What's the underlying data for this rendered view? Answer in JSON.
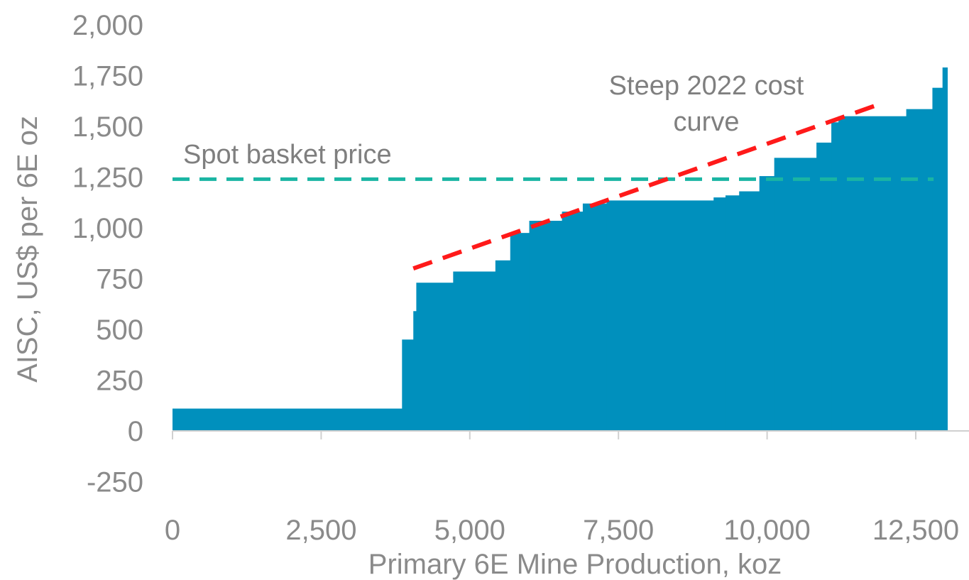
{
  "chart_data": {
    "type": "area",
    "step": true,
    "xlabel": "Primary 6E Mine Production, koz",
    "ylabel": "AISC, US$ per 6E oz",
    "xlim": [
      0,
      13300
    ],
    "ylim": [
      -250,
      2000
    ],
    "x_ticks": [
      0,
      2500,
      5000,
      7500,
      10000,
      12500
    ],
    "x_tick_labels": [
      "0",
      "2,500",
      "5,000",
      "7,500",
      "10,000",
      "12,500"
    ],
    "y_ticks": [
      -250,
      0,
      250,
      500,
      750,
      1000,
      1250,
      1500,
      1750,
      2000
    ],
    "y_tick_labels": [
      "-250",
      "0",
      "250",
      "500",
      "750",
      "1,000",
      "1,250",
      "1,500",
      "1,750",
      "2,000"
    ],
    "grid": false,
    "legend": "none",
    "colors": {
      "bars": "#0090bd",
      "spot_line": "#1ab5a3",
      "trend_line": "#ff1a1a",
      "axis": "#d0d0d0",
      "text": "#8a8a8a"
    },
    "segments": [
      {
        "x0": 0,
        "x1": 3860,
        "y": 110
      },
      {
        "x0": 3860,
        "x1": 4050,
        "y": 450
      },
      {
        "x0": 4050,
        "x1": 4100,
        "y": 590
      },
      {
        "x0": 4100,
        "x1": 4720,
        "y": 730
      },
      {
        "x0": 4720,
        "x1": 5430,
        "y": 785
      },
      {
        "x0": 5430,
        "x1": 5680,
        "y": 840
      },
      {
        "x0": 5680,
        "x1": 6000,
        "y": 975
      },
      {
        "x0": 6000,
        "x1": 6550,
        "y": 1035
      },
      {
        "x0": 6550,
        "x1": 6900,
        "y": 1080
      },
      {
        "x0": 6900,
        "x1": 7300,
        "y": 1120
      },
      {
        "x0": 7300,
        "x1": 9100,
        "y": 1135
      },
      {
        "x0": 9100,
        "x1": 9300,
        "y": 1150
      },
      {
        "x0": 9300,
        "x1": 9530,
        "y": 1160
      },
      {
        "x0": 9530,
        "x1": 9870,
        "y": 1180
      },
      {
        "x0": 9870,
        "x1": 10120,
        "y": 1255
      },
      {
        "x0": 10120,
        "x1": 10830,
        "y": 1345
      },
      {
        "x0": 10830,
        "x1": 11080,
        "y": 1420
      },
      {
        "x0": 11080,
        "x1": 11200,
        "y": 1520
      },
      {
        "x0": 11200,
        "x1": 12340,
        "y": 1550
      },
      {
        "x0": 12340,
        "x1": 12780,
        "y": 1585
      },
      {
        "x0": 12780,
        "x1": 12950,
        "y": 1690
      },
      {
        "x0": 12950,
        "x1": 13030,
        "y": 1790
      }
    ],
    "spot_price": {
      "label": "Spot basket price",
      "y": 1240,
      "x_start": 0,
      "x_end": 12800
    },
    "trend": {
      "label_line1": "Steep 2022 cost",
      "label_line2": "curve",
      "x0": 4050,
      "y0": 800,
      "x1": 11800,
      "y1": 1600
    }
  }
}
